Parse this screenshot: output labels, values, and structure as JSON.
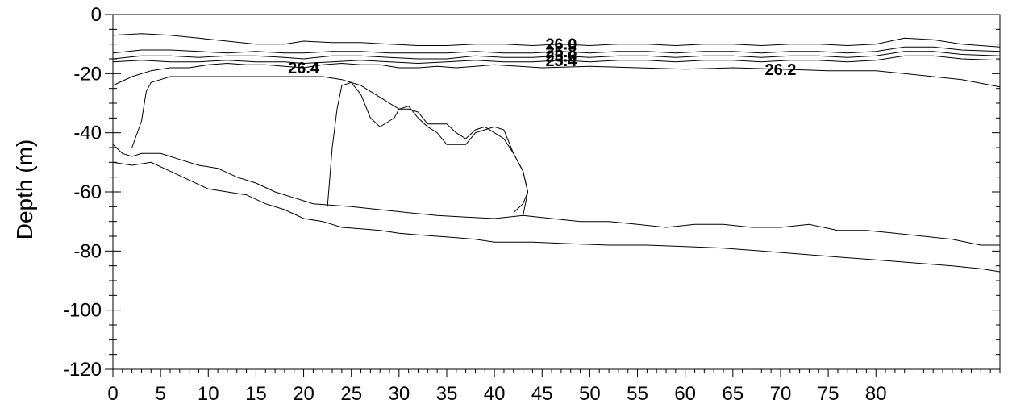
{
  "chart_data": {
    "type": "contour",
    "title": "",
    "xlabel": "",
    "ylabel": "Depth (m)",
    "xlim": [
      0,
      93
    ],
    "ylim": [
      -120,
      0
    ],
    "x_ticks": [
      0,
      5,
      10,
      15,
      20,
      25,
      30,
      35,
      40,
      45,
      50,
      55,
      60,
      65,
      70,
      75,
      80
    ],
    "y_ticks": [
      0,
      -20,
      -40,
      -60,
      -80,
      -100,
      -120
    ],
    "grid": false,
    "contours": [
      {
        "name": "26.0",
        "x": [
          0,
          3,
          6,
          9,
          12,
          15,
          18,
          20,
          23,
          26,
          29,
          32,
          35,
          38,
          41,
          44,
          47,
          50,
          53,
          56,
          59,
          62,
          65,
          68,
          71,
          74,
          77,
          80,
          83,
          86,
          89,
          93
        ],
        "y": [
          -7,
          -6.5,
          -7,
          -8,
          -9,
          -10,
          -10,
          -9,
          -9.5,
          -9.5,
          -10,
          -10.5,
          -10.5,
          -10,
          -10,
          -10.5,
          -10,
          -10.5,
          -10,
          -10,
          -10.5,
          -10,
          -10,
          -10.5,
          -10,
          -10,
          -10.5,
          -10,
          -8,
          -8.5,
          -10,
          -11
        ]
      },
      {
        "name": "25.8",
        "x": [
          0,
          3,
          6,
          9,
          12,
          15,
          18,
          20,
          23,
          26,
          29,
          32,
          35,
          38,
          41,
          44,
          47,
          50,
          53,
          56,
          59,
          62,
          65,
          68,
          71,
          74,
          77,
          80,
          83,
          86,
          89,
          93
        ],
        "y": [
          -13,
          -12,
          -12,
          -12.5,
          -13,
          -12.5,
          -13,
          -13,
          -12.5,
          -12.5,
          -13,
          -13,
          -13,
          -12.5,
          -13,
          -13,
          -12.5,
          -13,
          -12.5,
          -12.5,
          -13,
          -12.5,
          -12.5,
          -13,
          -12.5,
          -12.5,
          -13,
          -12.5,
          -11,
          -11,
          -12,
          -12.5
        ]
      },
      {
        "name": "25.6",
        "x": [
          0,
          3,
          6,
          9,
          12,
          15,
          18,
          20,
          23,
          26,
          29,
          32,
          35,
          38,
          41,
          44,
          47,
          50,
          53,
          56,
          59,
          62,
          65,
          68,
          71,
          74,
          77,
          80,
          83,
          86,
          89,
          93
        ],
        "y": [
          -15,
          -14,
          -14,
          -14.5,
          -14,
          -14,
          -14.5,
          -15,
          -14,
          -14,
          -14.5,
          -15,
          -15,
          -14,
          -14.5,
          -14.5,
          -14,
          -14.5,
          -14,
          -14,
          -14.5,
          -14,
          -14,
          -14.5,
          -14,
          -14,
          -14.5,
          -14,
          -12.5,
          -12.5,
          -13.5,
          -14
        ]
      },
      {
        "name": "25.4",
        "x": [
          0,
          3,
          6,
          9,
          12,
          15,
          18,
          20,
          23,
          26,
          29,
          32,
          35,
          38,
          41,
          44,
          47,
          50,
          53,
          56,
          59,
          62,
          65,
          68,
          71,
          74,
          77,
          80,
          83,
          86,
          89,
          93
        ],
        "y": [
          -16,
          -15.5,
          -16,
          -16,
          -15.5,
          -16,
          -16,
          -16.5,
          -16,
          -15.5,
          -16,
          -16.5,
          -16,
          -15.5,
          -16,
          -16,
          -15.5,
          -16,
          -15.5,
          -15.5,
          -16,
          -15.5,
          -15.5,
          -16,
          -15.5,
          -15.5,
          -16,
          -15.5,
          -14,
          -14,
          -15,
          -15.5
        ]
      },
      {
        "name": "26.4",
        "x": [
          0,
          2,
          4,
          6,
          8,
          10,
          12,
          14,
          16,
          18,
          20,
          22,
          24,
          26,
          28,
          30,
          32,
          34,
          36,
          38,
          40
        ],
        "y": [
          -24,
          -21,
          -19,
          -18,
          -18,
          -17,
          -16.5,
          -17,
          -17,
          -17.5,
          -18,
          -17,
          -16.5,
          -17,
          -17,
          -18,
          -18,
          -17.5,
          -18,
          -17.5,
          -17
        ]
      },
      {
        "name": "26.2",
        "x": [
          40,
          45,
          50,
          55,
          60,
          65,
          70,
          75,
          80,
          83,
          86,
          89,
          93
        ],
        "y": [
          -17,
          -18,
          -17.5,
          -18,
          -18.5,
          -18,
          -18.5,
          -19,
          -19,
          -20,
          -21,
          -22,
          -24.5
        ]
      },
      {
        "name": "",
        "x": [
          0,
          1,
          2,
          3,
          5,
          7,
          9,
          11,
          13,
          15,
          17,
          19,
          21,
          23,
          25,
          28,
          31,
          34,
          37,
          40,
          43,
          46,
          49,
          52,
          55,
          58,
          61,
          64,
          67,
          70,
          73,
          76,
          79,
          82,
          85,
          88,
          91,
          93
        ],
        "y": [
          -44,
          -47,
          -48,
          -47,
          -47,
          -49,
          -51,
          -52,
          -55,
          -57,
          -60,
          -62,
          -64,
          -64.5,
          -65,
          -66,
          -67,
          -68,
          -68.5,
          -69,
          -68,
          -69,
          -70,
          -70,
          -71,
          -72,
          -71,
          -71,
          -72,
          -72,
          -71,
          -73,
          -73,
          -74,
          -75,
          -76,
          -78,
          -78
        ]
      },
      {
        "name": "",
        "x": [
          0,
          2,
          4,
          6,
          8,
          10,
          12,
          14,
          16,
          18,
          20,
          22,
          24,
          26,
          28,
          30,
          32,
          34,
          36,
          38,
          40,
          44,
          48,
          52,
          56,
          60,
          64,
          68,
          72,
          76,
          80,
          84,
          88,
          91,
          93
        ],
        "y": [
          -50,
          -51,
          -50,
          -53,
          -56,
          -59,
          -60,
          -61,
          -64,
          -66,
          -69,
          -70,
          -72,
          -72.5,
          -73,
          -74,
          -74.5,
          -75,
          -75.5,
          -76,
          -77,
          -77,
          -77.5,
          -78,
          -78,
          -78.5,
          -79,
          -80,
          -81,
          -82,
          -83,
          -84,
          -85,
          -86,
          -87
        ]
      },
      {
        "name": "",
        "x": [
          2,
          3,
          3.5,
          4,
          5,
          6,
          7,
          10,
          13,
          16,
          19,
          22,
          24,
          26,
          28,
          30,
          31,
          32,
          33,
          35,
          36,
          37,
          38,
          39,
          40,
          41,
          42,
          43,
          43.5,
          43,
          42
        ],
        "y": [
          -45,
          -36,
          -26,
          -23,
          -22,
          -21,
          -21,
          -21,
          -21,
          -21,
          -21,
          -21,
          -22,
          -24,
          -28,
          -32,
          -32,
          -33,
          -37,
          -37,
          -40,
          -42,
          -39,
          -38,
          -40,
          -42,
          -47,
          -53,
          -60,
          -64,
          -67
        ]
      },
      {
        "name": "",
        "x": [
          22.5,
          23,
          23.5,
          24,
          25,
          26,
          27,
          28,
          29,
          29.5,
          30,
          31,
          32,
          33,
          34,
          35,
          36,
          37,
          38,
          39,
          40,
          41,
          42,
          43,
          43.5,
          43
        ],
        "y": [
          -65,
          -45,
          -32,
          -24,
          -23,
          -27,
          -35,
          -38,
          -36,
          -35,
          -32,
          -31,
          -35,
          -38,
          -40,
          -44,
          -44,
          -44,
          -40,
          -39,
          -38,
          -39,
          -47,
          -53,
          -60,
          -68
        ]
      }
    ]
  }
}
